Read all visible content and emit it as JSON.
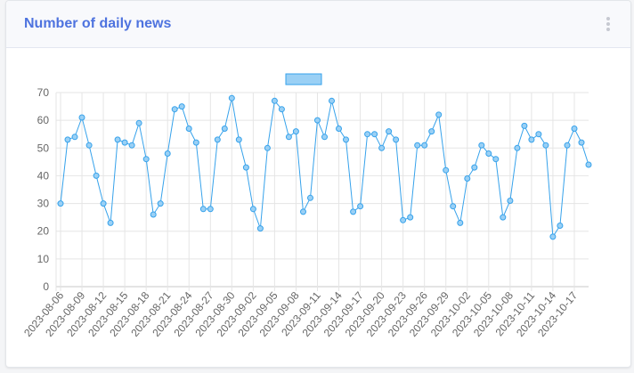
{
  "card": {
    "title": "Number of daily news"
  },
  "icons": {
    "menu": "kebab-vertical-icon"
  },
  "colors": {
    "title": "#4e73df",
    "line": "#36a2eb",
    "point_fill": "#9ad0f5",
    "legend_fill": "#9ad0f5"
  },
  "chart_data": {
    "type": "line",
    "title": "",
    "xlabel": "",
    "ylabel": "",
    "ylim": [
      0,
      70
    ],
    "y_ticks": [
      0,
      10,
      20,
      30,
      40,
      50,
      60,
      70
    ],
    "grid": true,
    "legend": {
      "position": "top-center",
      "entries": [
        ""
      ]
    },
    "x_tick_labels": [
      "2023-08-06",
      "2023-08-09",
      "2023-08-12",
      "2023-08-15",
      "2023-08-18",
      "2023-08-21",
      "2023-08-24",
      "2023-08-27",
      "2023-08-30",
      "2023-09-02",
      "2023-09-05",
      "2023-09-08",
      "2023-09-11",
      "2023-09-14",
      "2023-09-17",
      "2023-09-20",
      "2023-09-23",
      "2023-09-26",
      "2023-09-29",
      "2023-10-02",
      "2023-10-05",
      "2023-10-08",
      "2023-10-11",
      "2023-10-14",
      "2023-10-17"
    ],
    "x_start": "2023-08-06",
    "x_end": "2023-10-19",
    "series": [
      {
        "values": [
          30,
          53,
          54,
          61,
          51,
          40,
          30,
          23,
          53,
          52,
          51,
          59,
          46,
          26,
          30,
          48,
          64,
          65,
          57,
          52,
          28,
          28,
          53,
          57,
          68,
          53,
          43,
          28,
          21,
          50,
          67,
          64,
          54,
          56,
          27,
          32,
          60,
          54,
          67,
          57,
          53,
          27,
          29,
          55,
          55,
          50,
          56,
          53,
          24,
          25,
          51,
          51,
          56,
          62,
          42,
          29,
          23,
          39,
          43,
          51,
          48,
          46,
          25,
          31,
          50,
          58,
          53,
          55,
          51,
          18,
          22,
          51,
          57,
          52,
          44
        ]
      }
    ]
  }
}
